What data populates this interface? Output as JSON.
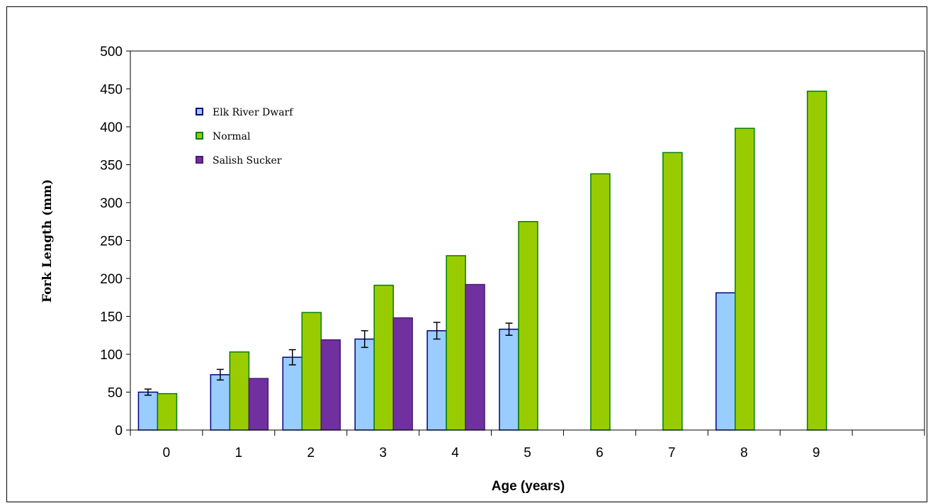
{
  "chart_data": {
    "type": "bar",
    "title": "",
    "xlabel": "Age (years)",
    "ylabel": "Fork Length (mm)",
    "ylim": [
      0,
      500
    ],
    "yticks": [
      0,
      50,
      100,
      150,
      200,
      250,
      300,
      350,
      400,
      450,
      500
    ],
    "categories": [
      "0",
      "1",
      "2",
      "3",
      "4",
      "5",
      "6",
      "7",
      "8",
      "9"
    ],
    "grid": false,
    "legend_position": "top-left inside plot",
    "series": [
      {
        "name": "Elk River Dwarf",
        "fill": "#99ccff",
        "stroke": "#000080",
        "values": [
          50,
          73,
          96,
          120,
          131,
          133,
          null,
          null,
          181,
          null
        ],
        "error": [
          4,
          7,
          10,
          11,
          11,
          8,
          null,
          null,
          null,
          null
        ]
      },
      {
        "name": "Normal",
        "fill": "#99cc00",
        "stroke": "#008000",
        "values": [
          48,
          103,
          155,
          191,
          230,
          275,
          338,
          366,
          398,
          447
        ],
        "error": [
          null,
          null,
          null,
          null,
          null,
          null,
          null,
          null,
          null,
          null
        ]
      },
      {
        "name": "Salish Sucker",
        "fill": "#7030a0",
        "stroke": "#4b1f6f",
        "values": [
          null,
          68,
          119,
          148,
          192,
          null,
          null,
          null,
          null,
          null
        ],
        "error": [
          null,
          null,
          null,
          null,
          null,
          null,
          null,
          null,
          null,
          null
        ]
      }
    ]
  }
}
